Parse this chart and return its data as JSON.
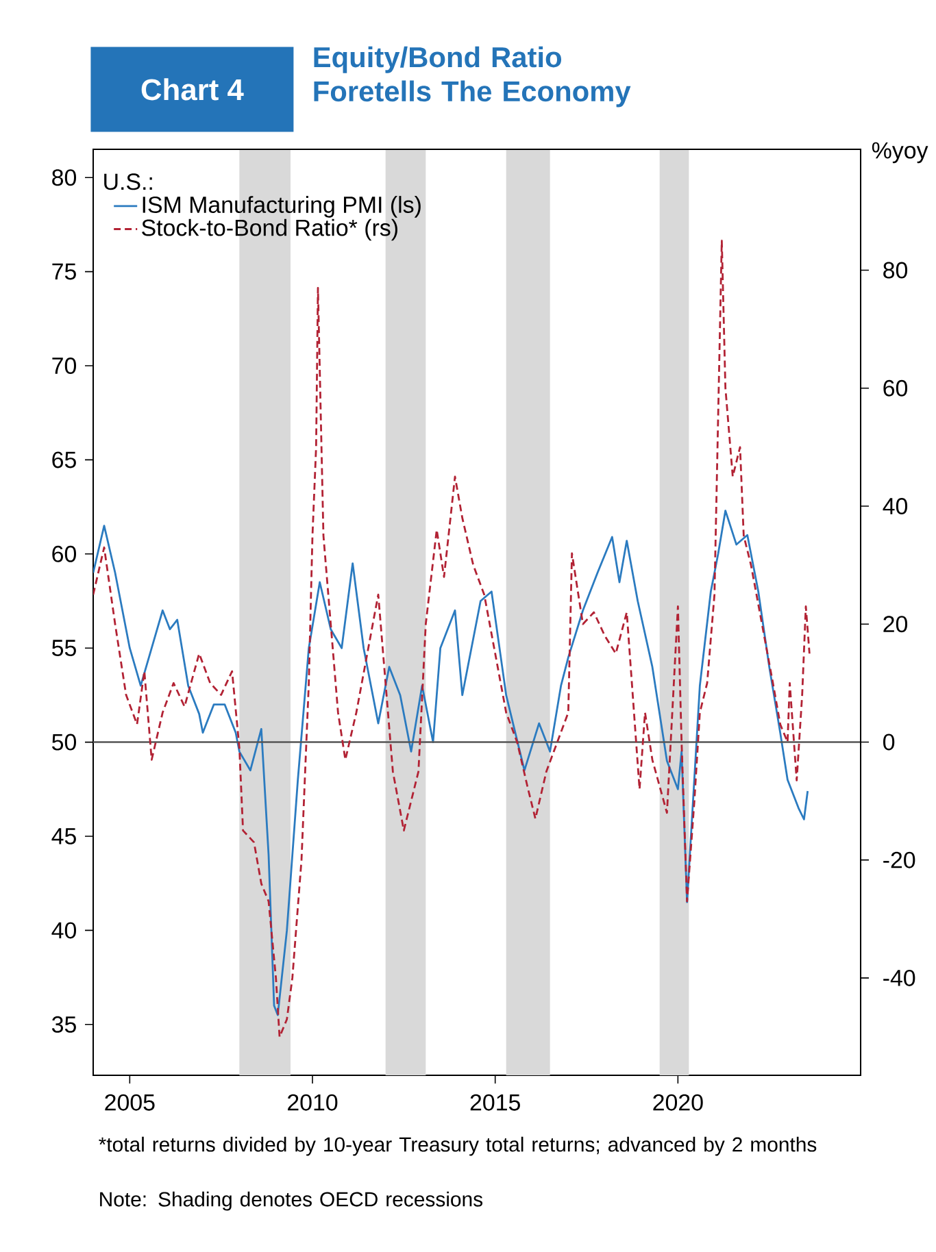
{
  "chart_data": {
    "type": "line",
    "subtitle": "Chart 4",
    "title": "Equity/Bond Ratio Foretells The Economy",
    "y2label": "%yoy",
    "legend_title": "U.S.:",
    "legend": "top left",
    "grid": false,
    "marker": "none",
    "xlim": [
      2004,
      2025
    ],
    "xticks": [
      2005,
      2010,
      2015,
      2020
    ],
    "ylim": [
      32.3,
      81.5
    ],
    "yticks": [
      35,
      40,
      45,
      50,
      55,
      60,
      65,
      70,
      75,
      80
    ],
    "y2lim": [
      -56.5,
      100.5
    ],
    "y2ticks": [
      -40,
      -20,
      0,
      20,
      40,
      60,
      80
    ],
    "ref_lines": [
      {
        "axis": "y2",
        "value": 0,
        "color": "#555555"
      }
    ],
    "bands": [
      {
        "axis": "x",
        "from": 2008.0,
        "to": 2009.4,
        "color": "#d9d9d9"
      },
      {
        "axis": "x",
        "from": 2012.0,
        "to": 2013.1,
        "color": "#d9d9d9"
      },
      {
        "axis": "x",
        "from": 2015.3,
        "to": 2016.5,
        "color": "#d9d9d9"
      },
      {
        "axis": "x",
        "from": 2019.5,
        "to": 2020.3,
        "color": "#d9d9d9"
      }
    ],
    "annotations": [
      "*total returns divided by 10-year Treasury total returns; advanced by 2 months",
      "Note: Shading denotes OECD recessions"
    ],
    "series": [
      {
        "name": "ISM Manufacturing PMI (ls)",
        "color": "#2b7bc0",
        "line_style": "solid",
        "x": [
          2004.0,
          2004.3,
          2004.6,
          2004.8,
          2005.0,
          2005.3,
          2005.6,
          2005.9,
          2006.1,
          2006.3,
          2006.6,
          2006.9,
          2007.0,
          2007.3,
          2007.6,
          2007.9,
          2008.0,
          2008.3,
          2008.6,
          2008.8,
          2008.95,
          2009.05,
          2009.3,
          2009.6,
          2009.9,
          2010.2,
          2010.5,
          2010.8,
          2011.1,
          2011.4,
          2011.8,
          2012.1,
          2012.4,
          2012.7,
          2013.0,
          2013.3,
          2013.5,
          2013.9,
          2014.1,
          2014.6,
          2014.9,
          2015.3,
          2015.8,
          2016.2,
          2016.5,
          2016.8,
          2017.0,
          2017.4,
          2017.8,
          2018.2,
          2018.4,
          2018.6,
          2018.9,
          2019.3,
          2019.7,
          2020.0,
          2020.1,
          2020.25,
          2020.6,
          2020.9,
          2021.1,
          2021.3,
          2021.6,
          2021.9,
          2022.2,
          2022.5,
          2022.8,
          2023.0,
          2023.3,
          2023.45,
          2023.55
        ],
        "values": [
          59,
          61.5,
          59,
          57,
          55,
          53,
          55,
          57,
          56,
          56.5,
          53,
          51.5,
          50.5,
          52,
          52,
          50.5,
          49.5,
          48.5,
          50.7,
          44,
          36,
          35.5,
          40,
          48,
          55,
          58.5,
          56,
          55,
          59.5,
          55,
          51,
          54,
          52.5,
          49.5,
          53,
          50,
          55,
          57,
          52.5,
          57.5,
          58,
          52.5,
          48.5,
          51,
          49.5,
          53,
          54.5,
          57,
          59,
          60.9,
          58.5,
          60.7,
          57.5,
          54,
          49,
          47.5,
          49.5,
          41.5,
          53,
          58,
          60,
          62.3,
          60.5,
          61,
          58,
          54,
          50.5,
          48,
          46.5,
          45.9,
          47.4
        ]
      },
      {
        "name": "Stock-to-Bond Ratio* (rs)",
        "color": "#b22234",
        "axis": "y2",
        "line_style": "dashed",
        "x": [
          2004.0,
          2004.3,
          2004.6,
          2004.9,
          2005.2,
          2005.4,
          2005.6,
          2005.9,
          2006.2,
          2006.5,
          2006.9,
          2007.2,
          2007.5,
          2007.8,
          2008.0,
          2008.1,
          2008.4,
          2008.6,
          2008.8,
          2009.0,
          2009.1,
          2009.3,
          2009.45,
          2009.7,
          2009.9,
          2010.0,
          2010.1,
          2010.15,
          2010.3,
          2010.5,
          2010.7,
          2010.9,
          2011.2,
          2011.5,
          2011.8,
          2012.0,
          2012.2,
          2012.5,
          2012.7,
          2012.9,
          2013.1,
          2013.4,
          2013.6,
          2013.9,
          2014.1,
          2014.4,
          2014.7,
          2015.0,
          2015.3,
          2015.6,
          2015.9,
          2016.1,
          2016.4,
          2016.7,
          2017.0,
          2017.1,
          2017.4,
          2017.7,
          2018.0,
          2018.3,
          2018.6,
          2018.95,
          2019.1,
          2019.3,
          2019.7,
          2020.0,
          2020.1,
          2020.25,
          2020.45,
          2020.6,
          2020.8,
          2021.0,
          2021.2,
          2021.3,
          2021.5,
          2021.7,
          2021.8,
          2022.0,
          2022.3,
          2022.6,
          2022.8,
          2023.0,
          2023.06,
          2023.25,
          2023.4,
          2023.5,
          2023.6
        ],
        "values": [
          25,
          33,
          20,
          8,
          3,
          12,
          -3,
          5,
          10,
          6,
          15,
          10,
          8,
          12,
          -1,
          -15,
          -17,
          -24,
          -27,
          -40,
          -50,
          -47,
          -40,
          -20,
          10,
          35,
          50,
          77,
          35,
          20,
          5,
          -3,
          5,
          15,
          25,
          10,
          -5,
          -15,
          -10,
          -5,
          20,
          36,
          28,
          45,
          38,
          30,
          25,
          15,
          5,
          0,
          -8,
          -13,
          -5,
          0,
          5,
          32,
          20,
          22,
          18,
          15,
          22,
          -8,
          5,
          -3,
          -12,
          23,
          0,
          -27,
          -10,
          5,
          10,
          25,
          85,
          60,
          45,
          50,
          35,
          30,
          20,
          10,
          3,
          0,
          10,
          -6.5,
          8,
          23,
          15
        ]
      }
    ]
  }
}
